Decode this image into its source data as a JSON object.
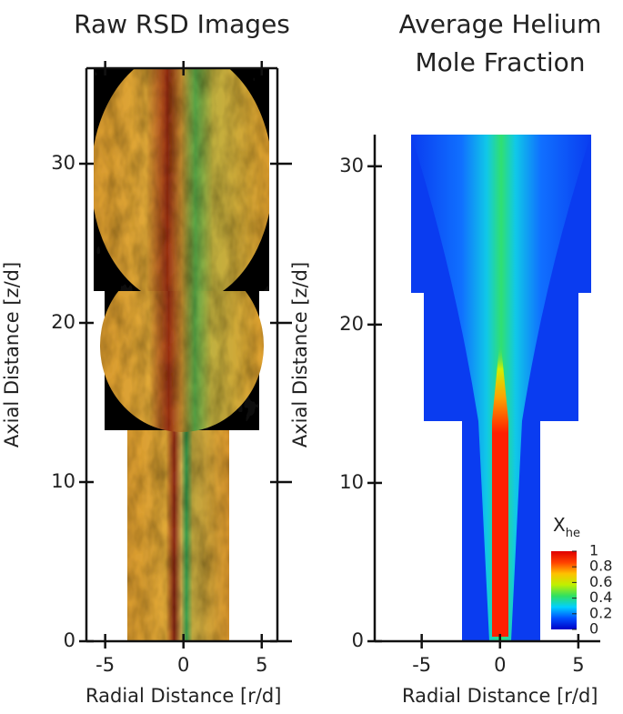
{
  "chart_data": [
    {
      "type": "image",
      "title": [
        "Raw RSD Images"
      ],
      "xlabel": "Radial Distance [r/d]",
      "ylabel": "Axial Distance [z/d]",
      "xlim": [
        -6.2,
        6.0
      ],
      "ylim": [
        0,
        36
      ],
      "xticks": [
        -5,
        0,
        5
      ],
      "yticks": [
        0,
        10,
        20,
        30
      ],
      "box": true
    },
    {
      "type": "image",
      "title": [
        "Average Helium",
        "Mole Fraction"
      ],
      "xlabel": "Radial Distance [r/d]",
      "ylabel": "Axial Distance [z/d]",
      "xlim": [
        -8.0,
        6.4
      ],
      "ylim": [
        0,
        32
      ],
      "xticks": [
        -5,
        0,
        5
      ],
      "yticks": [
        0,
        10,
        20,
        30
      ],
      "box": false,
      "colorbar": {
        "title": "X",
        "title_sub": "he",
        "lim": [
          0,
          1
        ],
        "ticks": [
          0,
          0.2,
          0.4,
          0.6,
          0.8,
          1
        ],
        "colors": [
          "#0000c8",
          "#0050ff",
          "#00d0ff",
          "#30e060",
          "#c0f000",
          "#ffc000",
          "#ff4000",
          "#e00000"
        ]
      }
    }
  ]
}
